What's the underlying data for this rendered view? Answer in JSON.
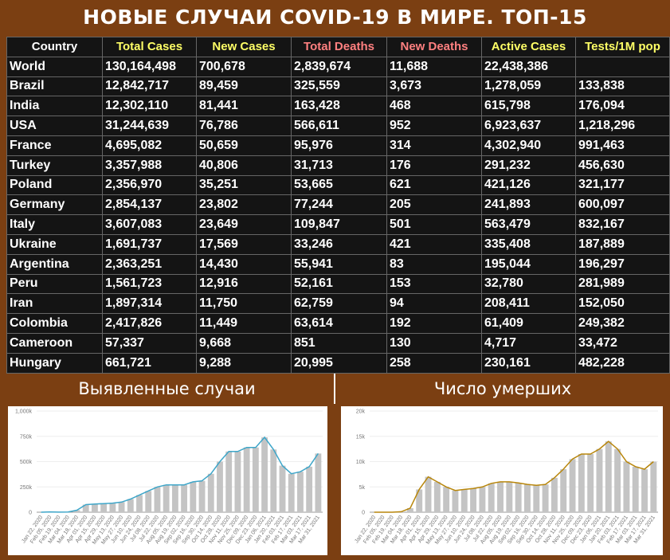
{
  "title": "НОВЫЕ СЛУЧАИ COVID-19 В МИРЕ. ТОП-15",
  "table": {
    "header": [
      "Country",
      "Total Cases",
      "New Cases",
      "Total Deaths",
      "New Deaths",
      "Active Cases",
      "Tests/1M pop"
    ],
    "header_colors": [
      "#ffffff",
      "#ffff66",
      "#ffff66",
      "#ff8080",
      "#ff8080",
      "#ffff66",
      "#ffff66"
    ],
    "rows": [
      [
        "World",
        "130,164,498",
        "700,678",
        "2,839,674",
        "11,688",
        "22,438,386",
        null
      ],
      [
        "Brazil",
        "12,842,717",
        "89,459",
        "325,559",
        "3,673",
        "1,278,059",
        "133,838"
      ],
      [
        "India",
        "12,302,110",
        "81,441",
        "163,428",
        "468",
        "615,798",
        "176,094"
      ],
      [
        "USA",
        "31,244,639",
        "76,786",
        "566,611",
        "952",
        "6,923,637",
        "1,218,296"
      ],
      [
        "France",
        "4,695,082",
        "50,659",
        "95,976",
        "314",
        "4,302,940",
        "991,463"
      ],
      [
        "Turkey",
        "3,357,988",
        "40,806",
        "31,713",
        "176",
        "291,232",
        "456,630"
      ],
      [
        "Poland",
        "2,356,970",
        "35,251",
        "53,665",
        "621",
        "421,126",
        "321,177"
      ],
      [
        "Germany",
        "2,854,137",
        "23,802",
        "77,244",
        "205",
        "241,893",
        "600,097"
      ],
      [
        "Italy",
        "3,607,083",
        "23,649",
        "109,847",
        "501",
        "563,479",
        "832,167"
      ],
      [
        "Ukraine",
        "1,691,737",
        "17,569",
        "33,246",
        "421",
        "335,408",
        "187,889"
      ],
      [
        "Argentina",
        "2,363,251",
        "14,430",
        "55,941",
        "83",
        "195,044",
        "196,297"
      ],
      [
        "Peru",
        "1,561,723",
        "12,916",
        "52,161",
        "153",
        "32,780",
        "281,989"
      ],
      [
        "Iran",
        "1,897,314",
        "11,750",
        "62,759",
        "94",
        "208,411",
        "152,050"
      ],
      [
        "Colombia",
        "2,417,826",
        "11,449",
        "63,614",
        "192",
        "61,409",
        "249,382"
      ],
      [
        "Cameroon",
        "57,337",
        "9,668",
        "851",
        "130",
        "4,717",
        "33,472"
      ],
      [
        "Hungary",
        "661,721",
        "9,288",
        "20,995",
        "258",
        "230,161",
        "482,228"
      ]
    ]
  },
  "chart_data": [
    {
      "type": "bar_line",
      "title": "Выявленные случаи",
      "bar_color": "#c4c4c4",
      "line_color": "#3ea6c9",
      "categories": [
        "Jan 22, 2020",
        "Feb 05, 2020",
        "Feb 19, 2020",
        "Mar 04, 2020",
        "Mar 18, 2020",
        "Apr 01, 2020",
        "Apr 15, 2020",
        "Apr 29, 2020",
        "May 13, 2020",
        "May 27, 2020",
        "Jun 10, 2020",
        "Jun 24, 2020",
        "Jul 08, 2020",
        "Jul 22, 2020",
        "Aug 05, 2020",
        "Aug 19, 2020",
        "Sep 02, 2020",
        "Sep 16, 2020",
        "Sep 30, 2020",
        "Oct 14, 2020",
        "Oct 28, 2020",
        "Nov 11, 2020",
        "Nov 25, 2020",
        "Dec 09, 2020",
        "Dec 23, 2020",
        "Jan 06, 2021",
        "Jan 20, 2021",
        "Feb 03, 2021",
        "Feb 17, 2021",
        "Mar 03, 2021",
        "Mar 17, 2021",
        "Mar 31, 2021"
      ],
      "values": [
        0,
        3000,
        1000,
        2000,
        20000,
        75000,
        80000,
        85000,
        90000,
        100000,
        130000,
        170000,
        210000,
        250000,
        270000,
        270000,
        270000,
        300000,
        310000,
        380000,
        500000,
        600000,
        600000,
        640000,
        640000,
        740000,
        620000,
        460000,
        380000,
        400000,
        450000,
        580000
      ],
      "ylim": [
        0,
        1000000
      ],
      "yticks": [
        0,
        {
          "value": 250000,
          "label": "250k"
        },
        {
          "value": 500000,
          "label": "500k"
        },
        {
          "value": 750000,
          "label": "750k"
        },
        {
          "value": 1000000,
          "label": "1,000k"
        }
      ]
    },
    {
      "type": "bar_line",
      "title": "Число умерших",
      "bar_color": "#c4c4c4",
      "line_color": "#b8860b",
      "categories": [
        "Jan 22, 2020",
        "Feb 05, 2020",
        "Feb 19, 2020",
        "Mar 04, 2020",
        "Mar 18, 2020",
        "Apr 01, 2020",
        "Apr 15, 2020",
        "Apr 29, 2020",
        "May 13, 2020",
        "May 27, 2020",
        "Jun 10, 2020",
        "Jun 24, 2020",
        "Jul 08, 2020",
        "Jul 22, 2020",
        "Aug 05, 2020",
        "Aug 19, 2020",
        "Sep 02, 2020",
        "Sep 16, 2020",
        "Sep 30, 2020",
        "Oct 14, 2020",
        "Oct 28, 2020",
        "Nov 11, 2020",
        "Nov 25, 2020",
        "Dec 09, 2020",
        "Dec 23, 2020",
        "Jan 06, 2021",
        "Jan 20, 2021",
        "Feb 03, 2021",
        "Feb 17, 2021",
        "Mar 03, 2021",
        "Mar 17, 2021",
        "Mar 31, 2021"
      ],
      "values": [
        0,
        0,
        0,
        100,
        800,
        4500,
        7000,
        6000,
        5000,
        4300,
        4500,
        4700,
        5000,
        5700,
        6000,
        6000,
        5800,
        5500,
        5300,
        5500,
        6800,
        8500,
        10500,
        11500,
        11500,
        12500,
        14000,
        12500,
        10000,
        9000,
        8500,
        10000
      ],
      "ylim": [
        0,
        20000
      ],
      "yticks": [
        0,
        {
          "value": 5000,
          "label": "5k"
        },
        {
          "value": 10000,
          "label": "10k"
        },
        {
          "value": 15000,
          "label": "15k"
        },
        {
          "value": 20000,
          "label": "20k"
        }
      ]
    }
  ]
}
